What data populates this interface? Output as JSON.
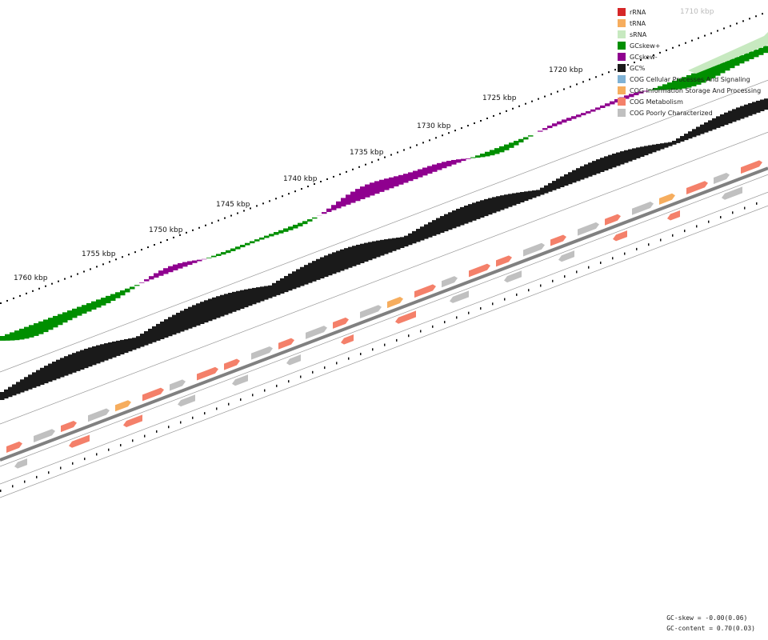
{
  "colors": {
    "rRNA": "#d62728",
    "tRNA": "#f6ad5e",
    "sRNA": "#c7e9c0",
    "gcskew_pos": "#008f00",
    "gcskew_neg": "#8f008f",
    "gc_content": "#1a1a1a",
    "cog_cellular": "#7fb2d5",
    "cog_info": "#f6ad5e",
    "cog_metabolism": "#f4806a",
    "cog_poor": "#c0c0c0",
    "backbone": "#808080",
    "ring_line": "#999999"
  },
  "legend": [
    {
      "label": "rRNA",
      "color_key": "rRNA"
    },
    {
      "label": "tRNA",
      "color_key": "tRNA"
    },
    {
      "label": "sRNA",
      "color_key": "sRNA"
    },
    {
      "label": "GCskew+",
      "color_key": "gcskew_pos"
    },
    {
      "label": "GCskew-",
      "color_key": "gcskew_neg"
    },
    {
      "label": "GC%",
      "color_key": "gc_content"
    },
    {
      "label": "COG Cellular Processes And Signaling",
      "color_key": "cog_cellular"
    },
    {
      "label": "COG Information Storage And Processing",
      "color_key": "cog_info"
    },
    {
      "label": "COG Metabolism",
      "color_key": "cog_metabolism"
    },
    {
      "label": "COG Poorly Characterized",
      "color_key": "cog_poor"
    }
  ],
  "kbp_labels": [
    "1710 kbp",
    "1720 kbp",
    "1725 kbp",
    "1730 kbp",
    "1735 kbp",
    "1740 kbp",
    "1745 kbp",
    "1750 kbp",
    "1755 kbp",
    "1760 kbp"
  ],
  "kbp_ticks": [
    1710,
    1720,
    1725,
    1730,
    1735,
    1740,
    1745,
    1750,
    1755,
    1760
  ],
  "stats": {
    "gc_skew": "GC-skew = -0.00(0.06)",
    "gc_content": "GC-content = 0.70(0.03)"
  }
}
